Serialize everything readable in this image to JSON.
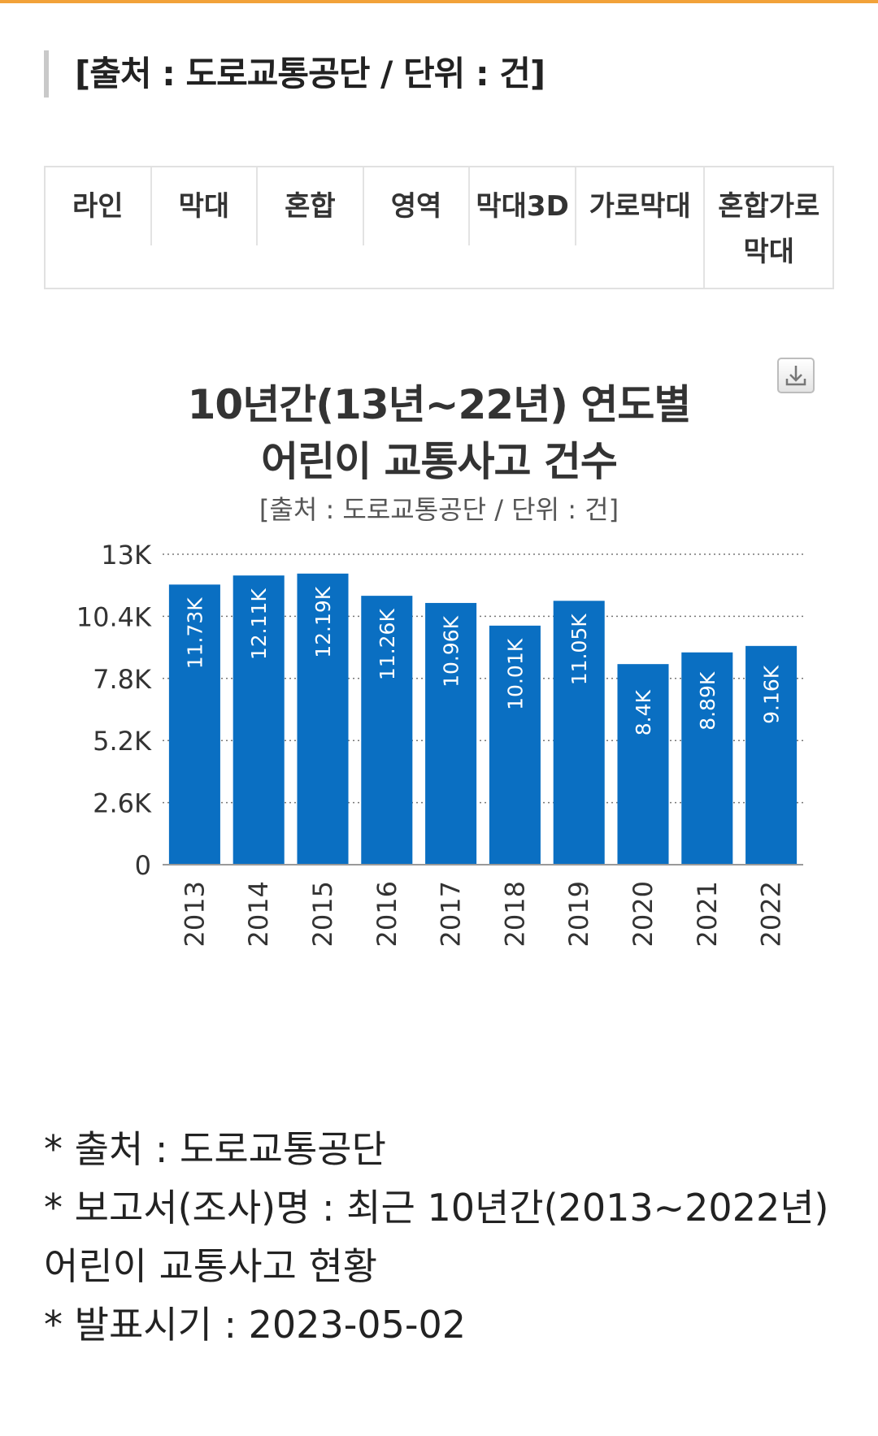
{
  "header": {
    "source_label": "[출처 : 도로교통공단 / 단위 : 건]"
  },
  "tabs": [
    "라인",
    "막대",
    "혼합",
    "영역",
    "막대3D",
    "가로막대",
    "혼합가로막대"
  ],
  "chart_title_line1": "10년간(13년~22년) 연도별",
  "chart_title_line2": "어린이 교통사고 건수",
  "chart_subtitle": "[출처 : 도로교통공단 / 단위 : 건]",
  "download_icon": "download-icon",
  "colors": {
    "accent_top": "#f2a23a",
    "bar": "#0a6fc2",
    "axis": "#9a9a9a",
    "grid": "#777777"
  },
  "chart_data": {
    "type": "bar",
    "title": "10년간(13년~22년) 연도별 어린이 교통사고 건수",
    "subtitle": "[출처 : 도로교통공단 / 단위 : 건]",
    "categories": [
      "2013",
      "2014",
      "2015",
      "2016",
      "2017",
      "2018",
      "2019",
      "2020",
      "2021",
      "2022"
    ],
    "values": [
      11730,
      12110,
      12190,
      11260,
      10960,
      10010,
      11050,
      8400,
      8890,
      9160
    ],
    "data_labels": [
      "11.73K",
      "12.11K",
      "12.19K",
      "11.26K",
      "10.96K",
      "10.01K",
      "11.05K",
      "8.4K",
      "8.89K",
      "9.16K"
    ],
    "y_ticks": [
      0,
      2600,
      5200,
      7800,
      10400,
      13000
    ],
    "y_tick_labels": [
      "0",
      "2.6K",
      "5.2K",
      "7.8K",
      "10.4K",
      "13K"
    ],
    "ylim": [
      0,
      13000
    ],
    "grid": true,
    "xlabel": "",
    "ylabel": ""
  },
  "notes": {
    "source": "* 출처 : 도로교통공단",
    "report_line1": "* 보고서(조사)명 : 최근 10년간(2013~2022년)",
    "report_line2": "어린이 교통사고 현황",
    "date": "* 발표시기 : 2023-05-02"
  }
}
